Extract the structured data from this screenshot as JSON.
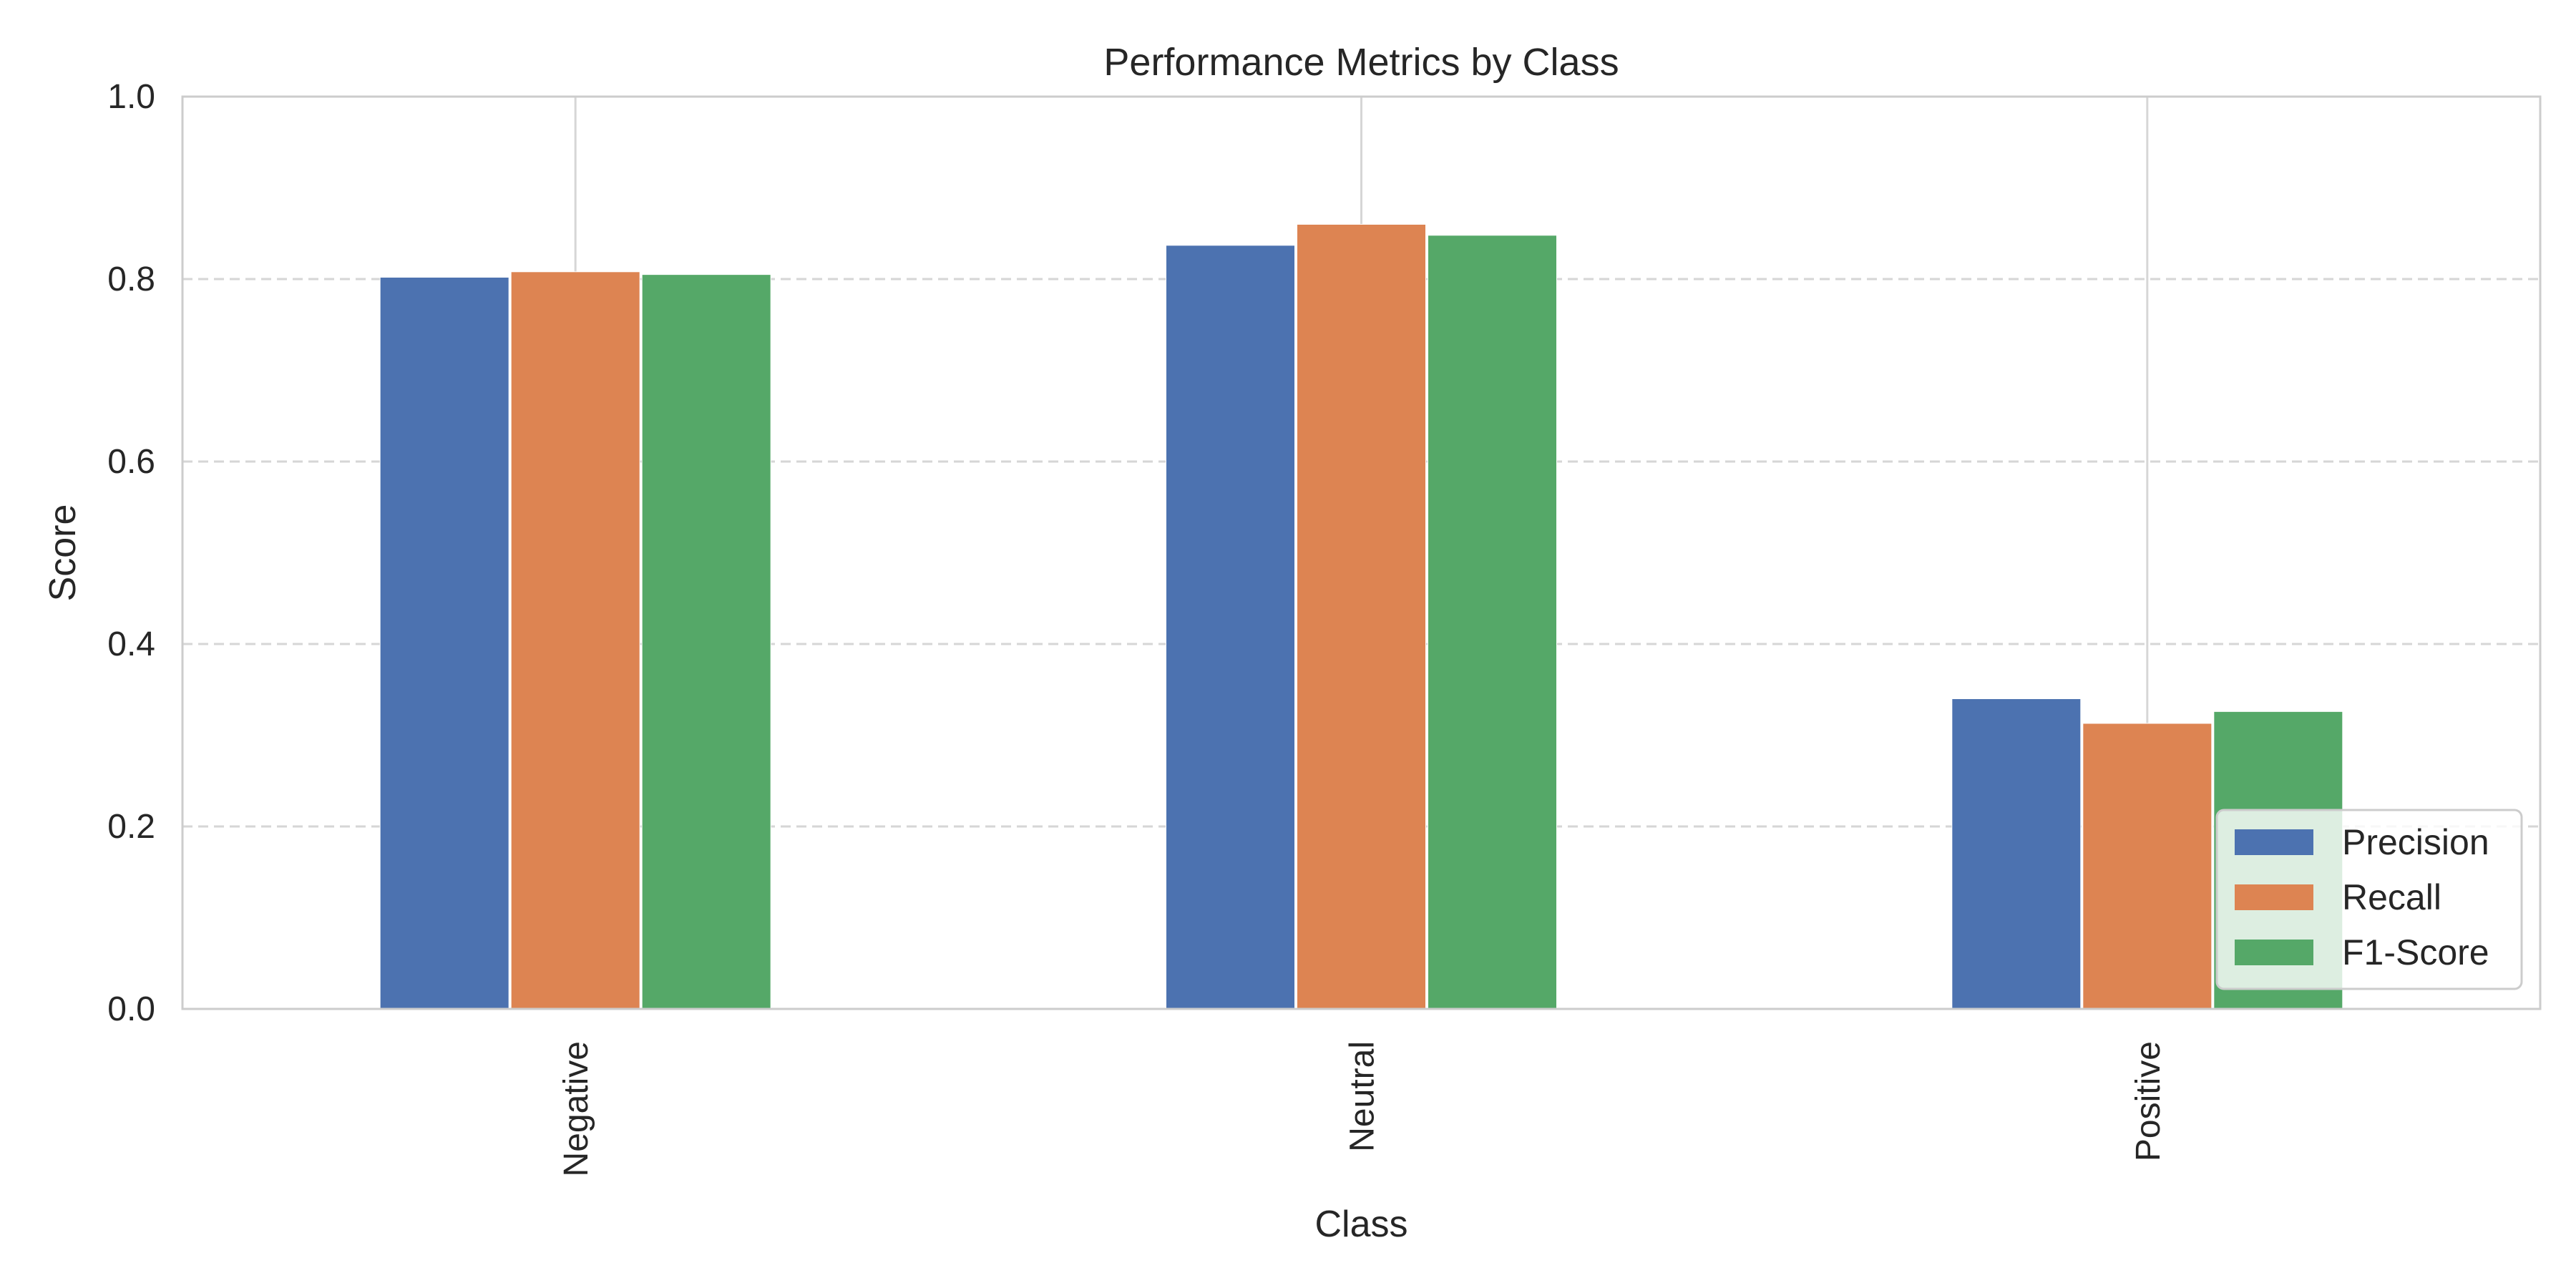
{
  "chart_data": {
    "type": "bar",
    "title": "Performance Metrics by Class",
    "xlabel": "Class",
    "ylabel": "Score",
    "categories": [
      "Negative",
      "Neutral",
      "Positive"
    ],
    "series": [
      {
        "name": "Precision",
        "values": [
          0.802,
          0.837,
          0.34
        ],
        "color": "#4c72b0"
      },
      {
        "name": "Recall",
        "values": [
          0.808,
          0.86,
          0.313
        ],
        "color": "#dd8452"
      },
      {
        "name": "F1-Score",
        "values": [
          0.805,
          0.848,
          0.326
        ],
        "color": "#55a868"
      }
    ],
    "ylim": [
      0,
      1.0
    ],
    "yticks": [
      0.0,
      0.2,
      0.4,
      0.6,
      0.8,
      1.0
    ],
    "ytick_labels": [
      "0.0",
      "0.2",
      "0.4",
      "0.6",
      "0.8",
      "1.0"
    ],
    "grid": {
      "y": "dashed",
      "x": "solid"
    },
    "legend_position": "lower-right"
  }
}
